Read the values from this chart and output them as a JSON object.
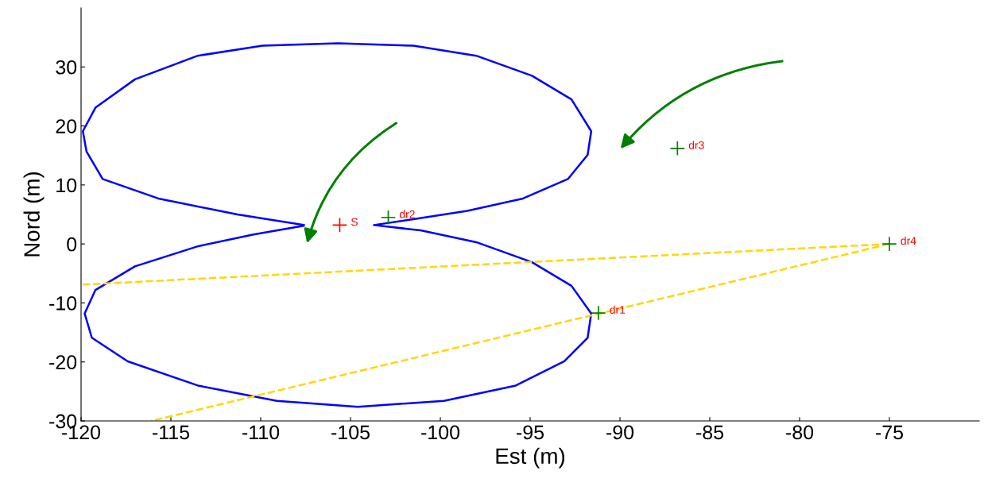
{
  "chart_data": {
    "type": "line",
    "xlabel": "Est (m)",
    "ylabel": "Nord (m)",
    "xlim": [
      -120,
      -70
    ],
    "ylim": [
      -30,
      40
    ],
    "xticks": [
      -120,
      -115,
      -110,
      -105,
      -100,
      -95,
      -90,
      -85,
      -80,
      -75
    ],
    "yticks": [
      -30,
      -20,
      -10,
      0,
      10,
      20,
      30
    ],
    "series": [
      {
        "color": "#0000ff",
        "line_style": "solid",
        "marker": "none",
        "x": [
          -107.6,
          -111.3,
          -115.7,
          -118.8,
          -119.7,
          -119.9,
          -119.2,
          -117.0,
          -113.5,
          -109.9,
          -105.7,
          -101.5,
          -98.0,
          -94.9,
          -92.7,
          -91.6,
          -91.8,
          -92.9,
          -95.4,
          -98.5,
          -101.5,
          -103.7,
          -101.1,
          -98.0,
          -94.9,
          -92.7,
          -91.6,
          -91.8,
          -93.1,
          -95.8,
          -99.8,
          -104.6,
          -109.1,
          -113.5,
          -117.4,
          -119.4,
          -119.8,
          -119.2,
          -117.0,
          -113.5,
          -110.4,
          -107.6
        ],
        "values": [
          3.2,
          5.0,
          7.7,
          11.0,
          15.7,
          19.1,
          23.1,
          27.9,
          31.9,
          33.6,
          34.0,
          33.6,
          31.9,
          28.5,
          24.5,
          19.1,
          15.1,
          11.0,
          7.7,
          5.6,
          4.2,
          3.2,
          2.3,
          0.3,
          -3.1,
          -7.1,
          -11.8,
          -15.9,
          -19.9,
          -24.0,
          -26.6,
          -27.6,
          -26.6,
          -24.0,
          -19.9,
          -15.9,
          -11.8,
          -7.8,
          -3.8,
          -0.4,
          1.6,
          3.1
        ]
      },
      {
        "color": "#ffd700",
        "line_style": "dashed",
        "marker": "none",
        "x": [
          -75,
          -120
        ],
        "values": [
          0,
          -6.9
        ]
      },
      {
        "color": "#ffd700",
        "line_style": "dashed",
        "marker": "none",
        "x": [
          -75,
          -116.1
        ],
        "values": [
          0,
          -30
        ]
      },
      {
        "type": "scatter",
        "color": "#ff0000",
        "marker": "cross",
        "x": [
          -105.6
        ],
        "values": [
          3.2
        ]
      },
      {
        "type": "scatter",
        "color": "#008000",
        "marker": "cross",
        "x": [
          -91.2,
          -102.9,
          -86.8,
          -75
        ],
        "values": [
          -11.7,
          4.5,
          16.2,
          0
        ]
      }
    ],
    "annotations": [
      {
        "text": "S",
        "x": -105.6,
        "y": 3.2
      },
      {
        "text": "dr1",
        "x": -91.2,
        "y": -11.7
      },
      {
        "text": "dr2",
        "x": -102.9,
        "y": 4.5
      },
      {
        "text": "dr3",
        "x": -86.8,
        "y": 16.2
      },
      {
        "text": "dr4",
        "x": -75,
        "y": 0
      }
    ]
  }
}
